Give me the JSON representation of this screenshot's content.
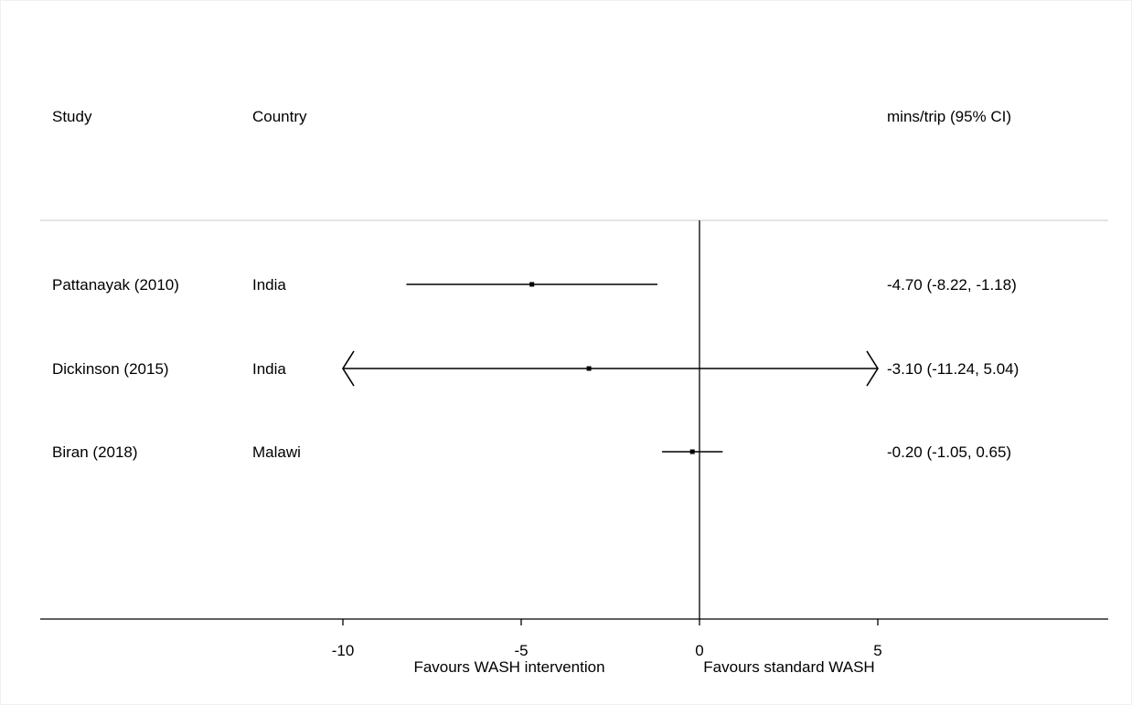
{
  "chart_data": {
    "type": "forest",
    "headers": {
      "study": "Study",
      "country": "Country",
      "estimate": "mins/trip (95% CI)"
    },
    "studies": [
      {
        "study": "Pattanayak (2010)",
        "country": "India",
        "estimate": -4.7,
        "lower": -8.22,
        "upper": -1.18,
        "label": "-4.70 (-8.22, -1.18)"
      },
      {
        "study": "Dickinson (2015)",
        "country": "India",
        "estimate": -3.1,
        "lower": -11.24,
        "upper": 5.04,
        "label": "-3.10 (-11.24, 5.04)"
      },
      {
        "study": "Biran (2018)",
        "country": "Malawi",
        "estimate": -0.2,
        "lower": -1.05,
        "upper": 0.65,
        "label": "-0.20 (-1.05, 0.65)"
      }
    ],
    "x_ticks": [
      {
        "value": -10,
        "label": "-10"
      },
      {
        "value": -5,
        "label": "-5"
      },
      {
        "value": 0,
        "label": "0"
      },
      {
        "value": 5,
        "label": "5"
      }
    ],
    "xlim": [
      -10,
      5
    ],
    "null_line": 0,
    "favours_left": "Favours WASH intervention",
    "favours_right": "Favours standard WASH"
  }
}
